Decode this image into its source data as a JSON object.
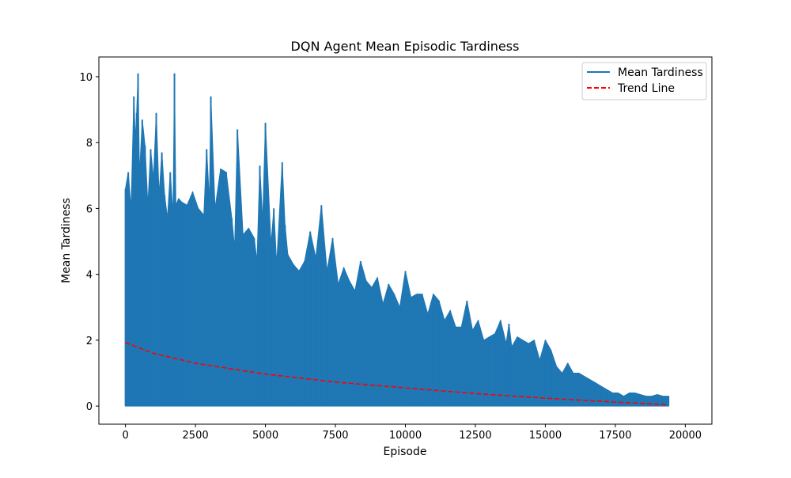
{
  "chart_data": {
    "type": "line",
    "title": "DQN Agent Mean Episodic Tardiness",
    "xlabel": "Episode",
    "ylabel": "Mean Tardiness",
    "xlim": [
      -950,
      20950
    ],
    "ylim": [
      -0.55,
      10.6
    ],
    "x_ticks": [
      0,
      2500,
      5000,
      7500,
      10000,
      12500,
      15000,
      17500,
      20000
    ],
    "x_tick_labels": [
      "0",
      "2500",
      "5000",
      "7500",
      "10000",
      "12500",
      "15000",
      "17500",
      "20000"
    ],
    "y_ticks": [
      0,
      2,
      4,
      6,
      8,
      10
    ],
    "y_tick_labels": [
      "0",
      "2",
      "4",
      "6",
      "8",
      "10"
    ],
    "grid": false,
    "legend_position": "top-right",
    "series": [
      {
        "name": "Mean Tardiness",
        "style": "solid",
        "color": "#1f77b4",
        "x": [
          0,
          100,
          200,
          300,
          350,
          400,
          450,
          500,
          600,
          700,
          800,
          900,
          1000,
          1100,
          1200,
          1300,
          1400,
          1500,
          1600,
          1700,
          1750,
          1800,
          1900,
          2000,
          2200,
          2400,
          2600,
          2800,
          2900,
          3000,
          3050,
          3200,
          3400,
          3600,
          3800,
          3900,
          4000,
          4200,
          4400,
          4600,
          4700,
          4800,
          4900,
          5000,
          5200,
          5300,
          5400,
          5600,
          5700,
          5800,
          6000,
          6200,
          6400,
          6600,
          6800,
          7000,
          7200,
          7400,
          7600,
          7800,
          8000,
          8200,
          8400,
          8600,
          8800,
          9000,
          9200,
          9400,
          9600,
          9800,
          10000,
          10200,
          10400,
          10600,
          10800,
          11000,
          11200,
          11400,
          11600,
          11800,
          12000,
          12200,
          12400,
          12600,
          12800,
          13000,
          13200,
          13400,
          13600,
          13700,
          13800,
          14000,
          14200,
          14400,
          14600,
          14800,
          15000,
          15200,
          15400,
          15600,
          15800,
          16000,
          16200,
          16400,
          16600,
          16800,
          17000,
          17200,
          17400,
          17600,
          17800,
          18000,
          18200,
          18400,
          18600,
          18800,
          19000,
          19200,
          19400
        ],
        "y_max": [
          6.6,
          7.1,
          6.0,
          9.4,
          8.1,
          8.9,
          10.1,
          7.0,
          8.7,
          7.9,
          6.1,
          7.8,
          6.9,
          8.9,
          6.4,
          7.7,
          6.4,
          5.7,
          7.1,
          5.8,
          10.1,
          6.1,
          6.3,
          6.2,
          6.1,
          6.5,
          6.0,
          5.8,
          7.8,
          6.2,
          9.4,
          6.0,
          7.2,
          7.1,
          5.7,
          4.8,
          8.4,
          5.2,
          5.4,
          5.1,
          4.4,
          7.3,
          5.6,
          8.6,
          4.9,
          6.0,
          4.3,
          7.4,
          5.5,
          4.6,
          4.3,
          4.1,
          4.4,
          5.3,
          4.5,
          6.1,
          4.1,
          5.1,
          3.7,
          4.2,
          3.8,
          3.5,
          4.4,
          3.8,
          3.6,
          3.9,
          3.1,
          3.7,
          3.4,
          3.0,
          4.1,
          3.3,
          3.4,
          3.4,
          2.8,
          3.4,
          3.2,
          2.6,
          2.9,
          2.4,
          2.4,
          3.2,
          2.3,
          2.6,
          2.0,
          2.1,
          2.2,
          2.6,
          1.9,
          2.5,
          1.8,
          2.1,
          2.0,
          1.9,
          2.0,
          1.4,
          2.0,
          1.7,
          1.2,
          1.0,
          1.3,
          1.0,
          1.0,
          0.9,
          0.8,
          0.7,
          0.6,
          0.5,
          0.4,
          0.4,
          0.3,
          0.4,
          0.4,
          0.35,
          0.3,
          0.3,
          0.35,
          0.3,
          0.3
        ],
        "y_min": 0
      },
      {
        "name": "Trend Line",
        "style": "dashed",
        "color": "#ff0000",
        "x": [
          0,
          1000,
          2500,
          5000,
          7500,
          10000,
          12500,
          15000,
          17500,
          19400
        ],
        "y": [
          1.93,
          1.6,
          1.3,
          0.97,
          0.73,
          0.55,
          0.38,
          0.24,
          0.12,
          0.04
        ]
      }
    ]
  }
}
